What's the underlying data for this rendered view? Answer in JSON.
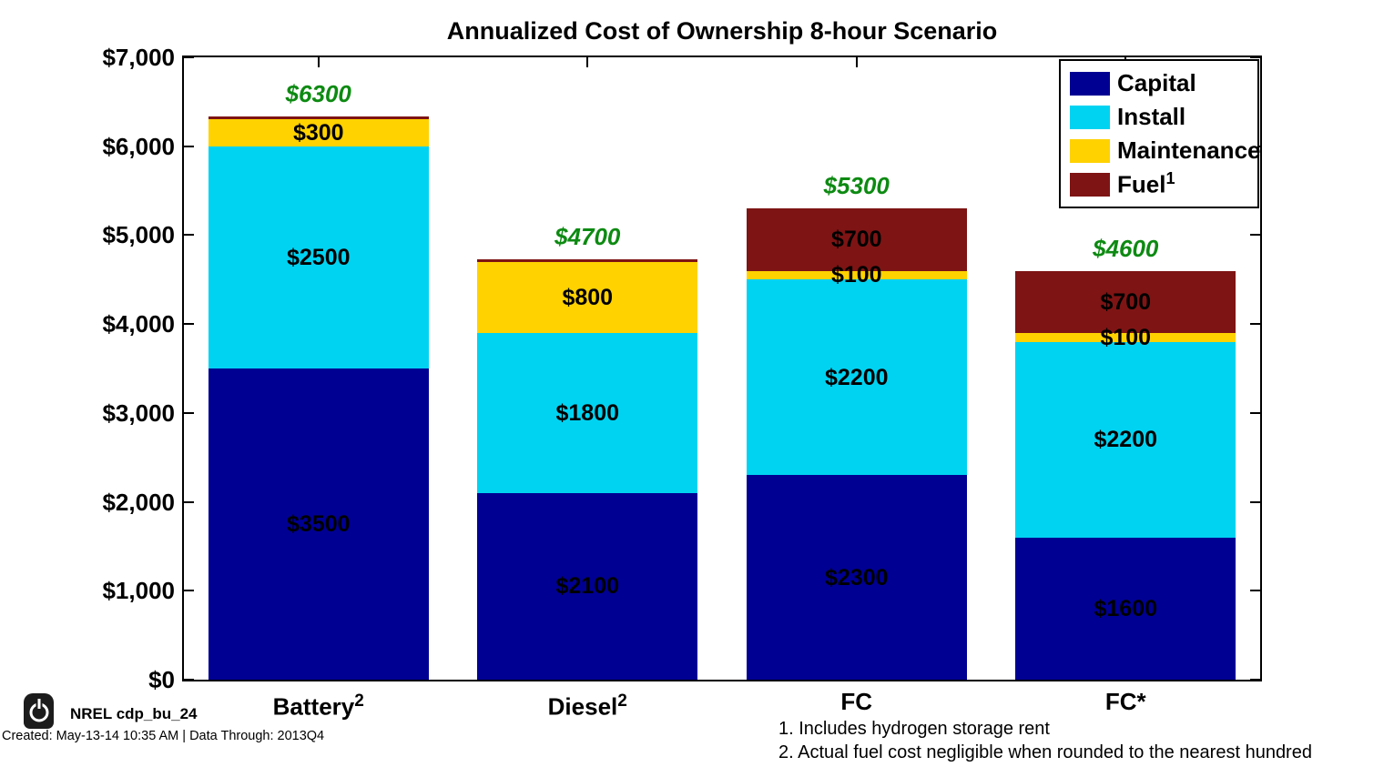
{
  "chart_data": {
    "type": "bar",
    "stacked": true,
    "title": "Annualized Cost of Ownership 8-hour Scenario",
    "categories": [
      {
        "label": "Battery",
        "sup": "2"
      },
      {
        "label": "Diesel",
        "sup": "2"
      },
      {
        "label": "FC",
        "sup": ""
      },
      {
        "label": "FC*",
        "sup": ""
      }
    ],
    "series": [
      {
        "name": "Capital",
        "sup": "",
        "color": "#000093",
        "values": [
          3500,
          2100,
          2300,
          1600
        ],
        "labels": [
          "$3500",
          "$2100",
          "$2300",
          "$1600"
        ]
      },
      {
        "name": "Install",
        "sup": "",
        "color": "#00d3f2",
        "values": [
          2500,
          1800,
          2200,
          2200
        ],
        "labels": [
          "$2500",
          "$1800",
          "$2200",
          "$2200"
        ]
      },
      {
        "name": "Maintenance",
        "sup": "",
        "color": "#ffd200",
        "values": [
          300,
          800,
          100,
          100
        ],
        "labels": [
          "$300",
          "$800",
          "$100",
          "$100"
        ]
      },
      {
        "name": "Fuel",
        "sup": "1",
        "color": "#7e1414",
        "values": [
          0,
          0,
          700,
          700
        ],
        "labels": [
          "",
          "",
          "$700",
          "$700"
        ]
      }
    ],
    "totals": {
      "values": [
        6300,
        4700,
        5300,
        4600
      ],
      "labels": [
        "$6300",
        "$4700",
        "$5300",
        "$4600"
      ],
      "color": "#0d8a12"
    },
    "y_axis": {
      "ticks": [
        {
          "v": 0,
          "label": "$0"
        },
        {
          "v": 1000,
          "label": "$1,000"
        },
        {
          "v": 2000,
          "label": "$2,000"
        },
        {
          "v": 3000,
          "label": "$3,000"
        },
        {
          "v": 4000,
          "label": "$4,000"
        },
        {
          "v": 5000,
          "label": "$5,000"
        },
        {
          "v": 6000,
          "label": "$6,000"
        },
        {
          "v": 7000,
          "label": "$7,000"
        }
      ]
    },
    "ylim": [
      0,
      7000
    ],
    "grid": false,
    "legend_position": "top-right"
  },
  "footer": {
    "brand": "NREL cdp_bu_24",
    "created": "Created: May-13-14 10:35 AM | Data Through: 2013Q4",
    "icon": "power-icon"
  },
  "footnotes": [
    "1. Includes hydrogen storage rent",
    "2. Actual fuel cost negligible when rounded to the nearest hundred"
  ]
}
